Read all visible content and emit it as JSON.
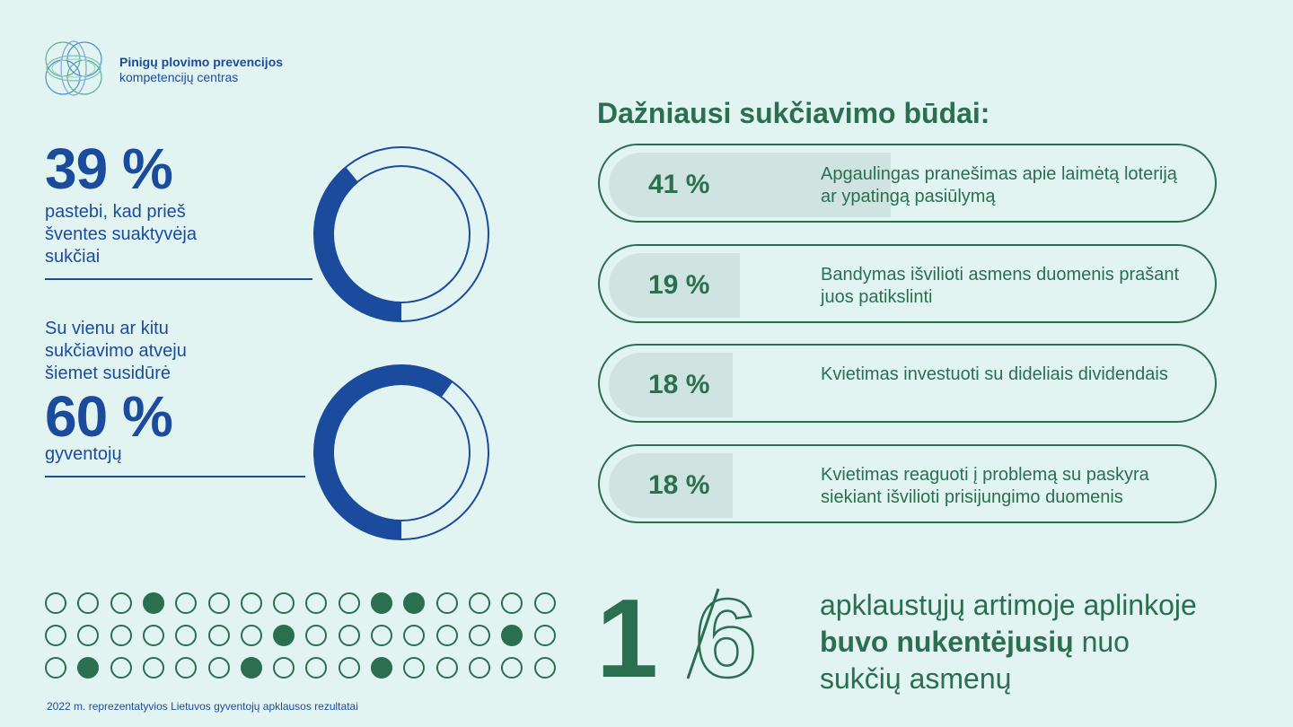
{
  "header": {
    "org_line1": "Pinigų plovimo prevencijos",
    "org_line2": "kompetencijų centras"
  },
  "stat1": {
    "value_label": "39 %",
    "value": 39,
    "text": "pastebi, kad prieš\nšventes suaktyvėja\nsukčiai"
  },
  "stat2": {
    "intro": "Su vienu ar kitu\nsukčiavimo atveju\nšiemet susidūrė",
    "value_label": "60 %",
    "value": 60,
    "text": "gyventojų"
  },
  "chart_data": {
    "type": "bar",
    "title": "Dažniausi sukčiavimo būdai:",
    "categories": [
      "Apgaulingas pranešimas apie laimėtą loteriją ar ypatingą pasiūlymą",
      "Bandymas išvilioti asmens duomenis prašant juos patikslinti",
      "Kvietimas investuoti su dideliais dividendais",
      "Kvietimas reaguoti į problemą su paskyra siekiant išvilioti prisijungimo duomenis"
    ],
    "values": [
      41,
      19,
      18,
      18
    ],
    "value_labels": [
      "41 %",
      "19 %",
      "18 %",
      "18 %"
    ]
  },
  "dots": {
    "rows": 3,
    "cols": 16,
    "filled": [
      [
        0,
        3
      ],
      [
        0,
        10
      ],
      [
        0,
        11
      ],
      [
        1,
        7
      ],
      [
        1,
        14
      ],
      [
        2,
        1
      ],
      [
        2,
        6
      ],
      [
        2,
        10
      ]
    ]
  },
  "fraction": {
    "numerator": "1",
    "denominator": "6",
    "text_part1": "apklaustųjų artimoje aplinkoje",
    "text_bold": "buvo nukentėjusių",
    "text_part2": " nuo",
    "text_part3": "sukčių asmenų"
  },
  "footnote": "2022 m. reprezentatyvios Lietuvos gyventojų apklausos rezultatai",
  "colors": {
    "background": "#e2f4f2",
    "blue": "#1b4b9c",
    "green": "#2a6f4f",
    "bar_fill": "#cfe3e0"
  }
}
